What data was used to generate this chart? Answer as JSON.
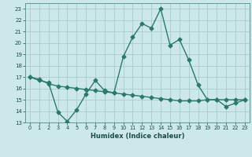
{
  "line1_x": [
    0,
    1,
    2,
    3,
    4,
    5,
    6,
    7,
    8,
    9,
    10,
    11,
    12,
    13,
    14,
    15,
    16,
    17,
    18,
    19,
    20,
    21,
    22,
    23
  ],
  "line1_y": [
    17.0,
    16.7,
    16.5,
    13.9,
    13.1,
    14.1,
    15.5,
    16.7,
    15.8,
    15.6,
    18.8,
    20.5,
    21.7,
    21.3,
    23.0,
    19.8,
    20.3,
    18.5,
    16.3,
    15.0,
    15.0,
    14.4,
    14.7,
    15.0
  ],
  "line2_x": [
    0,
    1,
    2,
    3,
    4,
    5,
    6,
    7,
    8,
    9,
    10,
    11,
    12,
    13,
    14,
    15,
    16,
    17,
    18,
    19,
    20,
    21,
    22,
    23
  ],
  "line2_y": [
    17.0,
    16.8,
    16.4,
    16.2,
    16.1,
    16.0,
    15.9,
    15.8,
    15.7,
    15.6,
    15.5,
    15.4,
    15.3,
    15.2,
    15.1,
    15.0,
    14.9,
    14.9,
    14.9,
    15.0,
    15.0,
    15.0,
    15.0,
    15.0
  ],
  "line_color": "#2a7a6a",
  "bg_color": "#cce8e8",
  "grid_color": "#a8cccc",
  "xlabel": "Humidex (Indice chaleur)",
  "ylim": [
    13,
    23.5
  ],
  "xlim": [
    -0.5,
    23.5
  ],
  "yticks": [
    13,
    14,
    15,
    16,
    17,
    18,
    19,
    20,
    21,
    22,
    23
  ],
  "xticks": [
    0,
    1,
    2,
    3,
    4,
    5,
    6,
    7,
    8,
    9,
    10,
    11,
    12,
    13,
    14,
    15,
    16,
    17,
    18,
    19,
    20,
    21,
    22,
    23
  ]
}
